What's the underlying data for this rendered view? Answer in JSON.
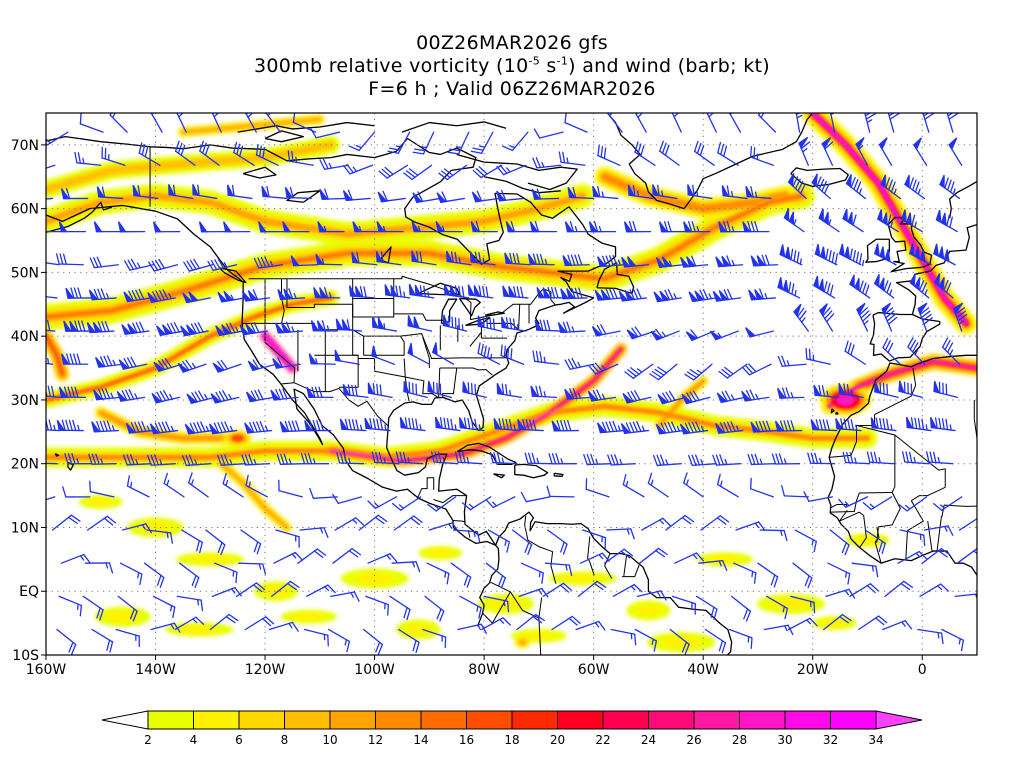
{
  "title": {
    "line1": "00Z26MAR2026 gfs",
    "line2_a": "300mb relative vorticity (10",
    "line2_exp1": "-5",
    "line2_b": " s",
    "line2_exp2": "-1",
    "line2_c": ") and wind (barb; kt)",
    "line3": "F=6 h ; Valid 06Z26MAR2026"
  },
  "map": {
    "lon_range": [
      -160,
      10
    ],
    "lat_range": [
      -10,
      75
    ],
    "lat_labels": [
      "70N",
      "60N",
      "50N",
      "40N",
      "30N",
      "20N",
      "10N",
      "EQ",
      "10S"
    ],
    "lon_labels": [
      "160W",
      "140W",
      "120W",
      "100W",
      "80W",
      "60W",
      "40W",
      "20W",
      "0"
    ],
    "grid": "dotted",
    "barb_color": "#2233ee",
    "coast_color": "#000000"
  },
  "colorbar": {
    "levels": [
      2,
      4,
      6,
      8,
      10,
      12,
      14,
      16,
      18,
      20,
      22,
      24,
      26,
      28,
      30,
      32,
      34
    ],
    "colors": [
      "#ffffff",
      "#e8ff00",
      "#fff200",
      "#ffd800",
      "#ffbe00",
      "#ffa400",
      "#ff8a00",
      "#ff6c00",
      "#ff4e00",
      "#ff2a00",
      "#ff0020",
      "#ff0050",
      "#ff0a78",
      "#ff18a0",
      "#ff14c8",
      "#ff0ae6",
      "#ff00ff",
      "#ff40ff"
    ]
  }
}
